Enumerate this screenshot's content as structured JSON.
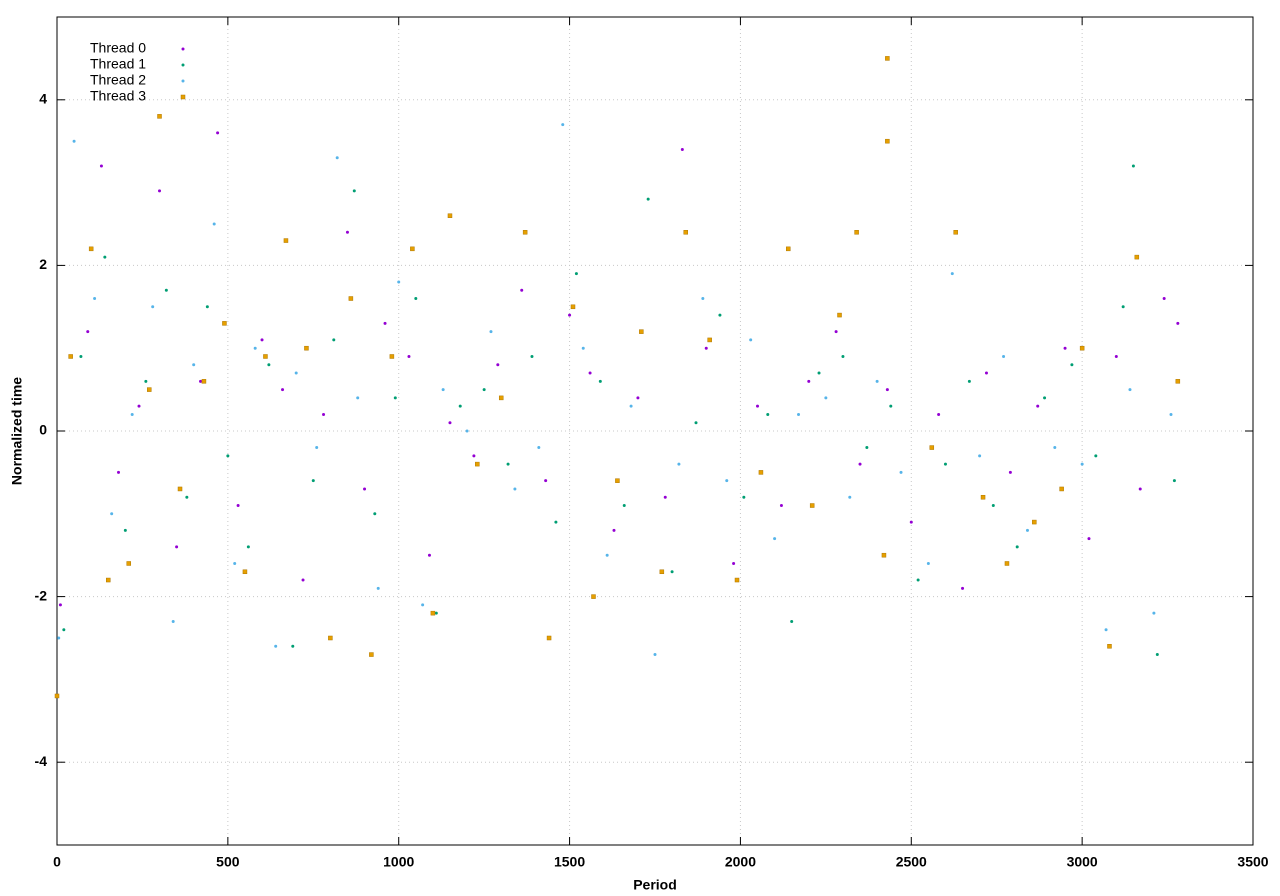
{
  "chart_data": {
    "type": "scatter",
    "x_label": "Period",
    "y_label": "Normalized time",
    "xlim": [
      0,
      3500
    ],
    "ylim": [
      -5,
      5
    ],
    "xticks": [
      0,
      500,
      1000,
      1500,
      2000,
      2500,
      3000,
      3500
    ],
    "yticks": [
      -4,
      -2,
      0,
      2,
      4
    ],
    "grid": true,
    "legend": "top-left",
    "series": [
      {
        "name": "Thread 0",
        "color": "#9400d3",
        "marker": "dot",
        "x": [
          10,
          90,
          130,
          180,
          240,
          300,
          350,
          420,
          470,
          530,
          600,
          660,
          720,
          780,
          850,
          900,
          960,
          1030,
          1090,
          1150,
          1220,
          1290,
          1360,
          1430,
          1500,
          1560,
          1630,
          1700,
          1780,
          1830,
          1900,
          1980,
          2050,
          2120,
          2200,
          2280,
          2350,
          2430,
          2500,
          2580,
          2650,
          2720,
          2790,
          2870,
          2950,
          3020,
          3100,
          3170,
          3240,
          3280
        ],
        "values": [
          -2.1,
          1.2,
          3.2,
          -0.5,
          0.3,
          2.9,
          -1.4,
          0.6,
          3.6,
          -0.9,
          1.1,
          0.5,
          -1.8,
          0.2,
          2.4,
          -0.7,
          1.3,
          0.9,
          -1.5,
          0.1,
          -0.3,
          0.8,
          1.7,
          -0.6,
          1.4,
          0.7,
          -1.2,
          0.4,
          -0.8,
          3.4,
          1.0,
          -1.6,
          0.3,
          -0.9,
          0.6,
          1.2,
          -0.4,
          0.5,
          -1.1,
          0.2,
          -1.9,
          0.7,
          -0.5,
          0.3,
          1.0,
          -1.3,
          0.9,
          -0.7,
          1.6,
          1.3
        ]
      },
      {
        "name": "Thread 1",
        "color": "#009e73",
        "marker": "dot",
        "x": [
          20,
          70,
          140,
          200,
          260,
          320,
          380,
          440,
          500,
          560,
          620,
          690,
          750,
          810,
          870,
          930,
          990,
          1050,
          1110,
          1180,
          1250,
          1320,
          1390,
          1460,
          1520,
          1590,
          1660,
          1730,
          1800,
          1870,
          1940,
          2010,
          2080,
          2150,
          2230,
          2300,
          2370,
          2440,
          2520,
          2600,
          2670,
          2740,
          2810,
          2890,
          2970,
          3040,
          3120,
          3150,
          3220,
          3270
        ],
        "values": [
          -2.4,
          0.9,
          2.1,
          -1.2,
          0.6,
          1.7,
          -0.8,
          1.5,
          -0.3,
          -1.4,
          0.8,
          -2.6,
          -0.6,
          1.1,
          2.9,
          -1.0,
          0.4,
          1.6,
          -2.2,
          0.3,
          0.5,
          -0.4,
          0.9,
          -1.1,
          1.9,
          0.6,
          -0.9,
          2.8,
          -1.7,
          0.1,
          1.4,
          -0.8,
          0.2,
          -2.3,
          0.7,
          0.9,
          -0.2,
          0.3,
          -1.8,
          -0.4,
          0.6,
          -0.9,
          -1.4,
          0.4,
          0.8,
          -0.3,
          1.5,
          3.2,
          -2.7,
          -0.6
        ]
      },
      {
        "name": "Thread 2",
        "color": "#56b4e9",
        "marker": "dot",
        "x": [
          5,
          50,
          110,
          160,
          220,
          280,
          340,
          400,
          460,
          520,
          580,
          640,
          700,
          760,
          820,
          880,
          940,
          1000,
          1070,
          1130,
          1200,
          1270,
          1340,
          1410,
          1480,
          1540,
          1610,
          1680,
          1750,
          1820,
          1890,
          1960,
          2030,
          2100,
          2170,
          2250,
          2320,
          2400,
          2470,
          2550,
          2620,
          2700,
          2770,
          2840,
          2920,
          3000,
          3070,
          3140,
          3210,
          3260
        ],
        "values": [
          -2.5,
          3.5,
          1.6,
          -1.0,
          0.2,
          1.5,
          -2.3,
          0.8,
          2.5,
          -1.6,
          1.0,
          -2.6,
          0.7,
          -0.2,
          3.3,
          0.4,
          -1.9,
          1.8,
          -2.1,
          0.5,
          0.0,
          1.2,
          -0.7,
          -0.2,
          3.7,
          1.0,
          -1.5,
          0.3,
          -2.7,
          -0.4,
          1.6,
          -0.6,
          1.1,
          -1.3,
          0.2,
          0.4,
          -0.8,
          0.6,
          -0.5,
          -1.6,
          1.9,
          -0.3,
          0.9,
          -1.2,
          -0.2,
          -0.4,
          -2.4,
          0.5,
          -2.2,
          0.2
        ]
      },
      {
        "name": "Thread 3",
        "color": "#e69f00",
        "marker": "square",
        "x": [
          0,
          40,
          100,
          150,
          210,
          270,
          300,
          360,
          430,
          490,
          550,
          610,
          670,
          730,
          800,
          860,
          920,
          980,
          1040,
          1100,
          1150,
          1230,
          1300,
          1370,
          1440,
          1510,
          1570,
          1640,
          1710,
          1770,
          1840,
          1910,
          1990,
          2060,
          2140,
          2210,
          2290,
          2340,
          2420,
          2430,
          2430,
          2560,
          2630,
          2710,
          2780,
          2860,
          2940,
          3000,
          3080,
          3160,
          3280
        ],
        "values": [
          -3.2,
          0.9,
          2.2,
          -1.8,
          -1.6,
          0.5,
          3.8,
          -0.7,
          0.6,
          1.3,
          -1.7,
          0.9,
          2.3,
          1.0,
          -2.5,
          1.6,
          -2.7,
          0.9,
          2.2,
          -2.2,
          2.6,
          -0.4,
          0.4,
          2.4,
          -2.5,
          1.5,
          -2.0,
          -0.6,
          1.2,
          -1.7,
          2.4,
          1.1,
          -1.8,
          -0.5,
          2.2,
          -0.9,
          1.4,
          2.4,
          -1.5,
          4.5,
          3.5,
          -0.2,
          2.4,
          -0.8,
          -1.6,
          -1.1,
          -0.7,
          1.0,
          -2.6,
          2.1,
          0.6
        ]
      }
    ]
  }
}
